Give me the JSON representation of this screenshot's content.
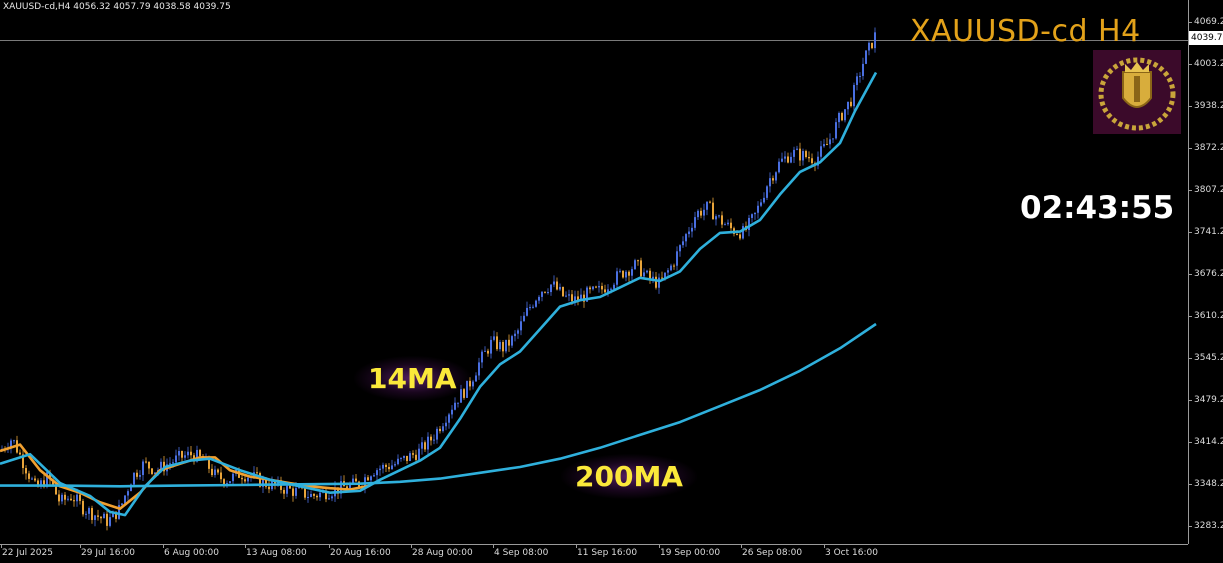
{
  "header": {
    "ohlc_text": "XAUUSD-cd,H4  4056.32 4057.79 4038.58 4039.75",
    "symbol_title": "XAUUSD-cd H4",
    "countdown": "02:43:55"
  },
  "current_price_label": "4039.75",
  "ma_labels": {
    "fast": "14MA",
    "slow": "200MA"
  },
  "colors": {
    "background": "#000000",
    "bull_candle": "#4a6fe0",
    "bear_candle": "#e8a43a",
    "ma14": "#f0a030",
    "ma_cyan": "#2fb0dc",
    "ma200": "#2fb0dc",
    "title": "#e3a21a",
    "ma_label": "#fbe93a",
    "axis_text": "#dcdcdc"
  },
  "chart_data": {
    "type": "candlestick",
    "title": "XAUUSD-cd H4",
    "y_ticks": [
      4069.2,
      4003.2,
      3938.2,
      3872.2,
      3807.2,
      3741.2,
      3676.2,
      3610.2,
      3545.2,
      3479.2,
      3414.2,
      3348.2,
      3283.2
    ],
    "y_tick_labels": [
      "4069.20",
      "4003.20",
      "3938.20",
      "3872.20",
      "3807.20",
      "3741.20",
      "3676.20",
      "3610.20",
      "3545.20",
      "3479.20",
      "3414.20",
      "3348.20",
      "3283.20"
    ],
    "ylim": [
      3255,
      4103
    ],
    "x_tick_labels": [
      "22 Jul 2025",
      "29 Jul 16:00",
      "6 Aug 00:00",
      "13 Aug 08:00",
      "20 Aug 16:00",
      "28 Aug 00:00",
      "4 Sep 08:00",
      "11 Sep 16:00",
      "19 Sep 00:00",
      "26 Sep 08:00",
      "3 Oct 16:00"
    ],
    "current_price": 4039.75,
    "close_path": [
      [
        0,
        3400
      ],
      [
        12,
        3420
      ],
      [
        24,
        3380
      ],
      [
        36,
        3340
      ],
      [
        48,
        3360
      ],
      [
        60,
        3320
      ],
      [
        72,
        3330
      ],
      [
        84,
        3310
      ],
      [
        96,
        3300
      ],
      [
        108,
        3290
      ],
      [
        120,
        3310
      ],
      [
        132,
        3360
      ],
      [
        144,
        3380
      ],
      [
        156,
        3370
      ],
      [
        168,
        3380
      ],
      [
        180,
        3390
      ],
      [
        192,
        3395
      ],
      [
        204,
        3385
      ],
      [
        216,
        3360
      ],
      [
        228,
        3355
      ],
      [
        240,
        3365
      ],
      [
        252,
        3360
      ],
      [
        264,
        3350
      ],
      [
        276,
        3345
      ],
      [
        288,
        3340
      ],
      [
        300,
        3335
      ],
      [
        312,
        3330
      ],
      [
        324,
        3335
      ],
      [
        336,
        3340
      ],
      [
        348,
        3345
      ],
      [
        360,
        3350
      ],
      [
        372,
        3370
      ],
      [
        384,
        3375
      ],
      [
        396,
        3380
      ],
      [
        408,
        3390
      ],
      [
        420,
        3400
      ],
      [
        432,
        3420
      ],
      [
        444,
        3450
      ],
      [
        456,
        3480
      ],
      [
        468,
        3500
      ],
      [
        480,
        3540
      ],
      [
        492,
        3570
      ],
      [
        504,
        3560
      ],
      [
        516,
        3580
      ],
      [
        528,
        3620
      ],
      [
        540,
        3650
      ],
      [
        552,
        3660
      ],
      [
        564,
        3640
      ],
      [
        576,
        3635
      ],
      [
        588,
        3645
      ],
      [
        600,
        3650
      ],
      [
        612,
        3665
      ],
      [
        624,
        3680
      ],
      [
        636,
        3690
      ],
      [
        648,
        3670
      ],
      [
        660,
        3660
      ],
      [
        672,
        3690
      ],
      [
        684,
        3730
      ],
      [
        696,
        3770
      ],
      [
        708,
        3780
      ],
      [
        720,
        3760
      ],
      [
        732,
        3745
      ],
      [
        744,
        3740
      ],
      [
        756,
        3770
      ],
      [
        768,
        3820
      ],
      [
        780,
        3850
      ],
      [
        792,
        3865
      ],
      [
        804,
        3860
      ],
      [
        816,
        3855
      ],
      [
        828,
        3880
      ],
      [
        840,
        3920
      ],
      [
        852,
        3950
      ],
      [
        864,
        4010
      ],
      [
        876,
        4050
      ]
    ],
    "series": [
      {
        "name": "14MA",
        "color": "#f0a030",
        "points": [
          [
            0,
            3400
          ],
          [
            20,
            3410
          ],
          [
            40,
            3370
          ],
          [
            60,
            3345
          ],
          [
            80,
            3335
          ],
          [
            100,
            3320
          ],
          [
            120,
            3310
          ],
          [
            140,
            3335
          ],
          [
            160,
            3370
          ],
          [
            180,
            3380
          ],
          [
            200,
            3390
          ],
          [
            215,
            3390
          ],
          [
            230,
            3370
          ],
          [
            250,
            3360
          ],
          [
            270,
            3355
          ],
          [
            290,
            3350
          ],
          [
            310,
            3345
          ],
          [
            330,
            3342
          ],
          [
            350,
            3340
          ],
          [
            370,
            3346
          ]
        ]
      },
      {
        "name": "cyan MA",
        "color": "#2fb0dc",
        "points": [
          [
            0,
            3380
          ],
          [
            30,
            3395
          ],
          [
            60,
            3350
          ],
          [
            90,
            3330
          ],
          [
            110,
            3305
          ],
          [
            125,
            3300
          ],
          [
            145,
            3345
          ],
          [
            165,
            3375
          ],
          [
            190,
            3385
          ],
          [
            210,
            3388
          ],
          [
            240,
            3370
          ],
          [
            270,
            3355
          ],
          [
            300,
            3345
          ],
          [
            330,
            3335
          ],
          [
            360,
            3338
          ],
          [
            380,
            3355
          ],
          [
            400,
            3370
          ],
          [
            420,
            3385
          ],
          [
            440,
            3405
          ],
          [
            460,
            3450
          ],
          [
            480,
            3500
          ],
          [
            500,
            3535
          ],
          [
            520,
            3555
          ],
          [
            540,
            3590
          ],
          [
            560,
            3625
          ],
          [
            580,
            3635
          ],
          [
            600,
            3640
          ],
          [
            620,
            3655
          ],
          [
            640,
            3670
          ],
          [
            660,
            3665
          ],
          [
            680,
            3680
          ],
          [
            700,
            3715
          ],
          [
            720,
            3740
          ],
          [
            740,
            3742
          ],
          [
            760,
            3760
          ],
          [
            780,
            3800
          ],
          [
            800,
            3835
          ],
          [
            820,
            3850
          ],
          [
            840,
            3880
          ],
          [
            855,
            3930
          ],
          [
            876,
            3990
          ]
        ]
      },
      {
        "name": "200MA",
        "color": "#2fb0dc",
        "points": [
          [
            0,
            3346
          ],
          [
            60,
            3346
          ],
          [
            120,
            3345
          ],
          [
            180,
            3346
          ],
          [
            240,
            3347
          ],
          [
            300,
            3348
          ],
          [
            360,
            3349
          ],
          [
            400,
            3352
          ],
          [
            440,
            3357
          ],
          [
            480,
            3366
          ],
          [
            520,
            3375
          ],
          [
            560,
            3388
          ],
          [
            600,
            3405
          ],
          [
            640,
            3425
          ],
          [
            680,
            3445
          ],
          [
            720,
            3470
          ],
          [
            760,
            3495
          ],
          [
            800,
            3525
          ],
          [
            840,
            3560
          ],
          [
            876,
            3598
          ]
        ]
      }
    ]
  }
}
